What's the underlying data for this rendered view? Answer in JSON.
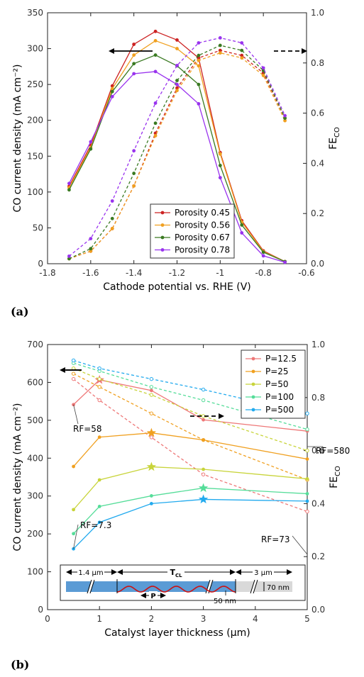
{
  "panel_labels": [
    "(a)",
    "(b)"
  ],
  "colors": {
    "a": [
      "#cc2222",
      "#f0a020",
      "#3a7a22",
      "#9933ee"
    ],
    "b": [
      "#ee7777",
      "#f0a020",
      "#c8d43a",
      "#55dd99",
      "#22aaee"
    ]
  },
  "chart_data": [
    {
      "type": "line",
      "xlabel": "Cathode potential vs. RHE (V)",
      "ylabel": "CO current density (mA cm⁻²)",
      "y2label": "FE_CO",
      "xlim": [
        -1.8,
        -0.6
      ],
      "ylim": [
        0,
        350
      ],
      "y2lim": [
        0,
        1.0
      ],
      "xticks": [
        "-1.8",
        "-1.6",
        "-1.4",
        "-1.2",
        "-1",
        "-0.8",
        "-0.6"
      ],
      "yticks": [
        "0",
        "50",
        "100",
        "150",
        "200",
        "250",
        "300",
        "350"
      ],
      "y2ticks": [
        "0.0",
        "0.2",
        "0.4",
        "0.6",
        "0.8",
        "1.0"
      ],
      "legend_position": "bottom-right",
      "x": [
        -1.7,
        -1.6,
        -1.5,
        -1.4,
        -1.3,
        -1.2,
        -1.1,
        -1.0,
        -0.9,
        -0.8,
        -0.7
      ],
      "series": [
        {
          "name": "Porosity 0.45",
          "current": [
            108,
            165,
            248,
            306,
            324,
            312,
            287,
            155,
            60,
            18,
            3
          ],
          "fe": [
            0.02,
            0.05,
            0.14,
            0.31,
            0.52,
            0.7,
            0.82,
            0.85,
            0.83,
            0.76,
            0.58
          ]
        },
        {
          "name": "Porosity 0.56",
          "current": [
            106,
            162,
            244,
            291,
            311,
            300,
            276,
            153,
            58,
            17,
            3
          ],
          "fe": [
            0.02,
            0.05,
            0.14,
            0.31,
            0.51,
            0.69,
            0.81,
            0.84,
            0.82,
            0.75,
            0.57
          ]
        },
        {
          "name": "Porosity 0.67",
          "current": [
            103,
            160,
            240,
            279,
            291,
            276,
            250,
            137,
            54,
            16,
            3
          ],
          "fe": [
            0.02,
            0.06,
            0.18,
            0.36,
            0.56,
            0.73,
            0.83,
            0.87,
            0.85,
            0.77,
            0.58
          ]
        },
        {
          "name": "Porosity 0.78",
          "current": [
            112,
            170,
            233,
            265,
            268,
            250,
            223,
            120,
            43,
            11,
            2
          ],
          "fe": [
            0.03,
            0.1,
            0.25,
            0.45,
            0.64,
            0.79,
            0.88,
            0.9,
            0.88,
            0.78,
            0.59
          ]
        }
      ],
      "arrow_left": "solid",
      "arrow_right": "dashed"
    },
    {
      "type": "line",
      "xlabel": "Catalyst layer thickness (μm)",
      "ylabel": "CO current density (mA cm⁻²)",
      "y2label": "FE_CO",
      "xlim": [
        0,
        5
      ],
      "ylim": [
        0,
        750
      ],
      "y2lim": [
        0,
        1.0
      ],
      "xticks": [
        "0",
        "1",
        "2",
        "3",
        "4",
        "5"
      ],
      "yticks": [
        "0",
        "100",
        "200",
        "300",
        "400",
        "500",
        "600",
        "700"
      ],
      "y2ticks": [
        "0.0",
        "0.2",
        "0.4",
        "0.6",
        "0.8",
        "1.0"
      ],
      "legend_position": "top-right",
      "x": [
        0.5,
        1,
        2,
        3,
        5
      ],
      "series": [
        {
          "name": "P=12.5",
          "current": [
            580,
            650,
            620,
            537,
            505
          ],
          "fe": [
            0.87,
            0.79,
            0.65,
            0.51,
            0.37
          ],
          "star_index": 1
        },
        {
          "name": "P=25",
          "current": [
            405,
            488,
            500,
            480,
            426
          ],
          "fe": [
            0.89,
            0.84,
            0.74,
            0.64,
            0.49
          ],
          "star_index": 2
        },
        {
          "name": "P=50",
          "current": [
            283,
            367,
            404,
            397,
            370
          ],
          "fe": [
            0.91,
            0.87,
            0.81,
            0.73,
            0.6
          ],
          "star_index": 2
        },
        {
          "name": "P=100",
          "current": [
            215,
            292,
            322,
            344,
            328
          ],
          "fe": [
            0.93,
            0.9,
            0.84,
            0.79,
            0.68
          ],
          "star_index": 3
        },
        {
          "name": "P=500",
          "current": [
            172,
            247,
            300,
            312,
            307
          ],
          "fe": [
            0.94,
            0.91,
            0.87,
            0.83,
            0.74
          ],
          "star_index": 3
        }
      ],
      "annotations": [
        {
          "text": "RF=58",
          "x": 0.5,
          "y": 580
        },
        {
          "text": "RF=580",
          "x": 5,
          "y": 505
        },
        {
          "text": "RF=73",
          "x": 5,
          "y": 280
        },
        {
          "text": "RF=7.3",
          "x": 0.5,
          "y": 172
        }
      ],
      "inset": {
        "left_label": "1.4 μm",
        "center_label": "T",
        "center_sub": "CL",
        "right_label": "3 μm",
        "height_label": "70 nm",
        "p_label": "P",
        "width_label": "50 nm"
      },
      "arrow_left": "solid",
      "arrow_right": "dashed"
    }
  ]
}
